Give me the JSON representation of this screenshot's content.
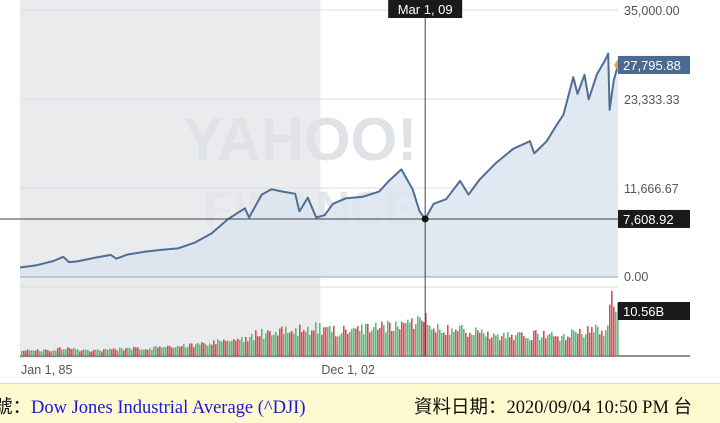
{
  "chart_data": {
    "type": "area",
    "title": "",
    "xlabel": "",
    "ylabel": "",
    "x_ticks": [
      "Jan 1, 85",
      "Dec 1, 02"
    ],
    "y_ticks": [
      "35,000.00",
      "23,333.33",
      "11,666.67",
      "0.00"
    ],
    "ylim": [
      0,
      35000
    ],
    "grid": true,
    "legend": "none",
    "watermark": "YAHOO! FINANCE",
    "crosshair": {
      "date_label": "Mar 1, 09",
      "value": 7608.92,
      "value_label": "7,608.92"
    },
    "last_price": {
      "value": 27795.88,
      "label": "27,795.88"
    },
    "volume_label": "10.56B",
    "series": [
      {
        "x": [
          "1985-01",
          "1986-01",
          "1987-01",
          "1987-08",
          "1987-12",
          "1988-06",
          "1989-06",
          "1990-06",
          "1990-10",
          "1991-06",
          "1992-06",
          "1993-06",
          "1994-06",
          "1995-06",
          "1996-06",
          "1997-06",
          "1998-06",
          "1998-09",
          "1999-06",
          "2000-01",
          "2000-09",
          "2001-06",
          "2001-09",
          "2002-03",
          "2002-09",
          "2003-03",
          "2003-09",
          "2004-06",
          "2005-06",
          "2006-06",
          "2007-01",
          "2007-10",
          "2008-06",
          "2008-11",
          "2009-03",
          "2009-09",
          "2010-06",
          "2011-04",
          "2011-10",
          "2012-06",
          "2013-06",
          "2014-06",
          "2015-06",
          "2015-09",
          "2016-06",
          "2017-01",
          "2017-06",
          "2018-01",
          "2018-04",
          "2018-09",
          "2018-12",
          "2019-06",
          "2019-12",
          "2020-02",
          "2020-03",
          "2020-06",
          "2020-09"
        ],
        "values": [
          1250,
          1550,
          2100,
          2650,
          1950,
          2050,
          2500,
          2900,
          2400,
          2950,
          3300,
          3550,
          3750,
          4500,
          5700,
          7600,
          9000,
          7800,
          10800,
          11500,
          11200,
          10900,
          8600,
          10400,
          7800,
          8100,
          9600,
          10300,
          10500,
          11200,
          12600,
          14100,
          11500,
          8600,
          7600,
          9600,
          10200,
          12600,
          10800,
          12800,
          15000,
          16800,
          17800,
          16200,
          17800,
          19900,
          21300,
          26200,
          24000,
          26500,
          23300,
          26600,
          28500,
          29300,
          21900,
          25800,
          27795.88
        ]
      }
    ],
    "volume_series_B": [
      0.9,
      1.0,
      1.1,
      1.6,
      1.3,
      1.1,
      1.0,
      1.1,
      1.2,
      1.3,
      1.4,
      1.6,
      1.8,
      2.0,
      2.4,
      2.8,
      3.2,
      3.6,
      4.0,
      4.3,
      4.5,
      4.6,
      4.8,
      4.9,
      5.0,
      4.8,
      4.6,
      4.7,
      4.9,
      5.0,
      5.2,
      5.6,
      6.0,
      6.6,
      7.2,
      5.6,
      5.0,
      4.6,
      4.6,
      4.2,
      3.8,
      3.6,
      3.6,
      3.8,
      3.6,
      3.4,
      3.3,
      4.2,
      4.6,
      4.0,
      5.6,
      4.4,
      4.6,
      5.2,
      12.0,
      7.2,
      10.56
    ]
  },
  "bottom_bar": {
    "left_label": "號：",
    "ticker_name": "Dow Jones Industrial Average (^DJI)",
    "right_text": "資料日期：2020/09/04 10:50 PM 台"
  },
  "colors": {
    "line": "#4e6e96",
    "area": "#dbe5ef",
    "shade": "#eaebed",
    "vol_up": "#5fb878",
    "vol_down": "#d0515a",
    "crosshair": "#404040",
    "last_badge": "#4a6a90",
    "badge_dark": "#1a1a1a"
  }
}
